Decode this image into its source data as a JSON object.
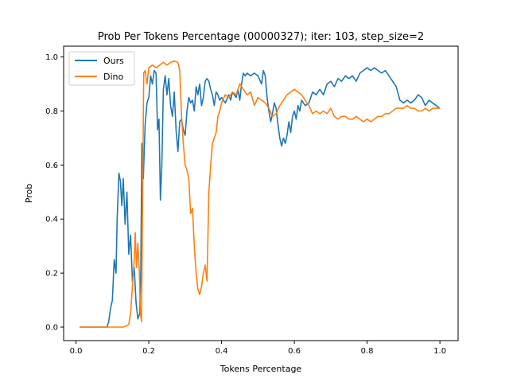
{
  "chart_data": {
    "type": "line",
    "title": "Prob Per Tokens Percentage (00000327); iter: 103, step_size=2",
    "xlabel": "Tokens Percentage",
    "ylabel": "Prob",
    "xlim": [
      -0.034,
      1.05
    ],
    "ylim": [
      -0.05,
      1.04
    ],
    "xticks": [
      0.0,
      0.2,
      0.4,
      0.6,
      0.8,
      1.0
    ],
    "xtick_labels": [
      "0.0",
      "0.2",
      "0.4",
      "0.6",
      "0.8",
      "1.0"
    ],
    "yticks": [
      0.0,
      0.2,
      0.4,
      0.6,
      0.8,
      1.0
    ],
    "ytick_labels": [
      "0.0",
      "0.2",
      "0.4",
      "0.6",
      "0.8",
      "1.0"
    ],
    "grid": false,
    "legend_position": "top-left",
    "series": [
      {
        "name": "Ours",
        "color": "#1f77b4",
        "points": [
          [
            0.01,
            0.0
          ],
          [
            0.05,
            0.0
          ],
          [
            0.085,
            0.0
          ],
          [
            0.09,
            0.02
          ],
          [
            0.095,
            0.07
          ],
          [
            0.1,
            0.1
          ],
          [
            0.105,
            0.25
          ],
          [
            0.11,
            0.2
          ],
          [
            0.113,
            0.4
          ],
          [
            0.118,
            0.57
          ],
          [
            0.122,
            0.54
          ],
          [
            0.126,
            0.45
          ],
          [
            0.13,
            0.55
          ],
          [
            0.135,
            0.38
          ],
          [
            0.14,
            0.5
          ],
          [
            0.145,
            0.27
          ],
          [
            0.15,
            0.34
          ],
          [
            0.155,
            0.17
          ],
          [
            0.16,
            0.22
          ],
          [
            0.165,
            0.09
          ],
          [
            0.17,
            0.03
          ],
          [
            0.175,
            0.05
          ],
          [
            0.178,
            0.2
          ],
          [
            0.181,
            0.68
          ],
          [
            0.185,
            0.55
          ],
          [
            0.19,
            0.75
          ],
          [
            0.195,
            0.83
          ],
          [
            0.2,
            0.85
          ],
          [
            0.205,
            0.93
          ],
          [
            0.21,
            0.9
          ],
          [
            0.215,
            0.95
          ],
          [
            0.22,
            0.94
          ],
          [
            0.224,
            0.73
          ],
          [
            0.228,
            0.77
          ],
          [
            0.232,
            0.47
          ],
          [
            0.236,
            0.6
          ],
          [
            0.24,
            0.88
          ],
          [
            0.245,
            0.93
          ],
          [
            0.25,
            0.86
          ],
          [
            0.255,
            0.92
          ],
          [
            0.26,
            0.82
          ],
          [
            0.265,
            0.78
          ],
          [
            0.27,
            0.87
          ],
          [
            0.275,
            0.73
          ],
          [
            0.28,
            0.65
          ],
          [
            0.285,
            0.76
          ],
          [
            0.29,
            0.77
          ],
          [
            0.295,
            0.73
          ],
          [
            0.3,
            0.71
          ],
          [
            0.305,
            0.8
          ],
          [
            0.31,
            0.85
          ],
          [
            0.315,
            0.83
          ],
          [
            0.32,
            0.84
          ],
          [
            0.325,
            0.8
          ],
          [
            0.33,
            0.89
          ],
          [
            0.335,
            0.86
          ],
          [
            0.34,
            0.9
          ],
          [
            0.345,
            0.82
          ],
          [
            0.35,
            0.85
          ],
          [
            0.355,
            0.91
          ],
          [
            0.36,
            0.92
          ],
          [
            0.365,
            0.91
          ],
          [
            0.37,
            0.88
          ],
          [
            0.375,
            0.86
          ],
          [
            0.38,
            0.82
          ],
          [
            0.385,
            0.87
          ],
          [
            0.39,
            0.86
          ],
          [
            0.395,
            0.84
          ],
          [
            0.4,
            0.85
          ],
          [
            0.41,
            0.83
          ],
          [
            0.42,
            0.86
          ],
          [
            0.425,
            0.84
          ],
          [
            0.43,
            0.87
          ],
          [
            0.44,
            0.85
          ],
          [
            0.445,
            0.88
          ],
          [
            0.45,
            0.84
          ],
          [
            0.455,
            0.9
          ],
          [
            0.46,
            0.94
          ],
          [
            0.465,
            0.93
          ],
          [
            0.47,
            0.94
          ],
          [
            0.48,
            0.93
          ],
          [
            0.49,
            0.94
          ],
          [
            0.5,
            0.93
          ],
          [
            0.51,
            0.9
          ],
          [
            0.515,
            0.95
          ],
          [
            0.52,
            0.93
          ],
          [
            0.525,
            0.85
          ],
          [
            0.53,
            0.8
          ],
          [
            0.535,
            0.76
          ],
          [
            0.54,
            0.79
          ],
          [
            0.545,
            0.83
          ],
          [
            0.55,
            0.81
          ],
          [
            0.555,
            0.75
          ],
          [
            0.56,
            0.7
          ],
          [
            0.565,
            0.67
          ],
          [
            0.57,
            0.7
          ],
          [
            0.575,
            0.68
          ],
          [
            0.58,
            0.71
          ],
          [
            0.585,
            0.76
          ],
          [
            0.59,
            0.72
          ],
          [
            0.595,
            0.78
          ],
          [
            0.6,
            0.8
          ],
          [
            0.605,
            0.77
          ],
          [
            0.61,
            0.82
          ],
          [
            0.615,
            0.8
          ],
          [
            0.62,
            0.84
          ],
          [
            0.63,
            0.82
          ],
          [
            0.64,
            0.83
          ],
          [
            0.65,
            0.87
          ],
          [
            0.66,
            0.86
          ],
          [
            0.67,
            0.88
          ],
          [
            0.68,
            0.86
          ],
          [
            0.69,
            0.9
          ],
          [
            0.7,
            0.91
          ],
          [
            0.71,
            0.89
          ],
          [
            0.72,
            0.92
          ],
          [
            0.73,
            0.91
          ],
          [
            0.74,
            0.93
          ],
          [
            0.75,
            0.92
          ],
          [
            0.76,
            0.93
          ],
          [
            0.77,
            0.91
          ],
          [
            0.78,
            0.94
          ],
          [
            0.79,
            0.95
          ],
          [
            0.8,
            0.96
          ],
          [
            0.81,
            0.95
          ],
          [
            0.82,
            0.96
          ],
          [
            0.83,
            0.95
          ],
          [
            0.84,
            0.94
          ],
          [
            0.85,
            0.95
          ],
          [
            0.86,
            0.93
          ],
          [
            0.87,
            0.91
          ],
          [
            0.88,
            0.89
          ],
          [
            0.89,
            0.84
          ],
          [
            0.9,
            0.83
          ],
          [
            0.91,
            0.84
          ],
          [
            0.92,
            0.83
          ],
          [
            0.93,
            0.84
          ],
          [
            0.94,
            0.86
          ],
          [
            0.95,
            0.85
          ],
          [
            0.96,
            0.82
          ],
          [
            0.97,
            0.84
          ],
          [
            0.98,
            0.83
          ],
          [
            0.99,
            0.82
          ],
          [
            1.0,
            0.81
          ]
        ]
      },
      {
        "name": "Dino",
        "color": "#ff7f0e",
        "points": [
          [
            0.01,
            0.0
          ],
          [
            0.05,
            0.0
          ],
          [
            0.1,
            0.0
          ],
          [
            0.13,
            0.0
          ],
          [
            0.14,
            0.005
          ],
          [
            0.145,
            0.01
          ],
          [
            0.15,
            0.05
          ],
          [
            0.155,
            0.15
          ],
          [
            0.16,
            0.25
          ],
          [
            0.163,
            0.35
          ],
          [
            0.166,
            0.22
          ],
          [
            0.17,
            0.31
          ],
          [
            0.174,
            0.2
          ],
          [
            0.177,
            0.05
          ],
          [
            0.18,
            0.02
          ],
          [
            0.182,
            0.3
          ],
          [
            0.184,
            0.6
          ],
          [
            0.186,
            0.94
          ],
          [
            0.19,
            0.95
          ],
          [
            0.195,
            0.9
          ],
          [
            0.2,
            0.96
          ],
          [
            0.21,
            0.97
          ],
          [
            0.22,
            0.96
          ],
          [
            0.23,
            0.97
          ],
          [
            0.24,
            0.98
          ],
          [
            0.25,
            0.97
          ],
          [
            0.26,
            0.98
          ],
          [
            0.27,
            0.985
          ],
          [
            0.28,
            0.98
          ],
          [
            0.285,
            0.95
          ],
          [
            0.29,
            0.78
          ],
          [
            0.295,
            0.68
          ],
          [
            0.3,
            0.6
          ],
          [
            0.305,
            0.58
          ],
          [
            0.31,
            0.55
          ],
          [
            0.315,
            0.42
          ],
          [
            0.32,
            0.44
          ],
          [
            0.325,
            0.3
          ],
          [
            0.33,
            0.2
          ],
          [
            0.335,
            0.14
          ],
          [
            0.34,
            0.12
          ],
          [
            0.345,
            0.15
          ],
          [
            0.35,
            0.2
          ],
          [
            0.355,
            0.23
          ],
          [
            0.36,
            0.17
          ],
          [
            0.365,
            0.5
          ],
          [
            0.37,
            0.6
          ],
          [
            0.375,
            0.68
          ],
          [
            0.38,
            0.7
          ],
          [
            0.385,
            0.72
          ],
          [
            0.39,
            0.78
          ],
          [
            0.395,
            0.8
          ],
          [
            0.4,
            0.83
          ],
          [
            0.41,
            0.86
          ],
          [
            0.42,
            0.85
          ],
          [
            0.43,
            0.87
          ],
          [
            0.44,
            0.86
          ],
          [
            0.45,
            0.9
          ],
          [
            0.46,
            0.88
          ],
          [
            0.47,
            0.86
          ],
          [
            0.48,
            0.87
          ],
          [
            0.49,
            0.82
          ],
          [
            0.5,
            0.85
          ],
          [
            0.51,
            0.84
          ],
          [
            0.52,
            0.83
          ],
          [
            0.53,
            0.81
          ],
          [
            0.54,
            0.78
          ],
          [
            0.55,
            0.79
          ],
          [
            0.56,
            0.82
          ],
          [
            0.57,
            0.84
          ],
          [
            0.58,
            0.86
          ],
          [
            0.59,
            0.87
          ],
          [
            0.6,
            0.88
          ],
          [
            0.61,
            0.87
          ],
          [
            0.62,
            0.86
          ],
          [
            0.63,
            0.84
          ],
          [
            0.64,
            0.82
          ],
          [
            0.65,
            0.79
          ],
          [
            0.66,
            0.8
          ],
          [
            0.67,
            0.79
          ],
          [
            0.68,
            0.8
          ],
          [
            0.69,
            0.79
          ],
          [
            0.7,
            0.81
          ],
          [
            0.71,
            0.78
          ],
          [
            0.72,
            0.77
          ],
          [
            0.73,
            0.78
          ],
          [
            0.74,
            0.78
          ],
          [
            0.75,
            0.77
          ],
          [
            0.76,
            0.77
          ],
          [
            0.77,
            0.78
          ],
          [
            0.78,
            0.77
          ],
          [
            0.79,
            0.76
          ],
          [
            0.8,
            0.77
          ],
          [
            0.81,
            0.76
          ],
          [
            0.82,
            0.77
          ],
          [
            0.83,
            0.78
          ],
          [
            0.84,
            0.78
          ],
          [
            0.85,
            0.79
          ],
          [
            0.86,
            0.79
          ],
          [
            0.87,
            0.8
          ],
          [
            0.88,
            0.81
          ],
          [
            0.89,
            0.81
          ],
          [
            0.9,
            0.81
          ],
          [
            0.91,
            0.82
          ],
          [
            0.92,
            0.81
          ],
          [
            0.93,
            0.81
          ],
          [
            0.94,
            0.8
          ],
          [
            0.95,
            0.8
          ],
          [
            0.96,
            0.81
          ],
          [
            0.97,
            0.8
          ],
          [
            0.98,
            0.81
          ],
          [
            0.99,
            0.81
          ],
          [
            1.0,
            0.81
          ]
        ]
      }
    ]
  }
}
